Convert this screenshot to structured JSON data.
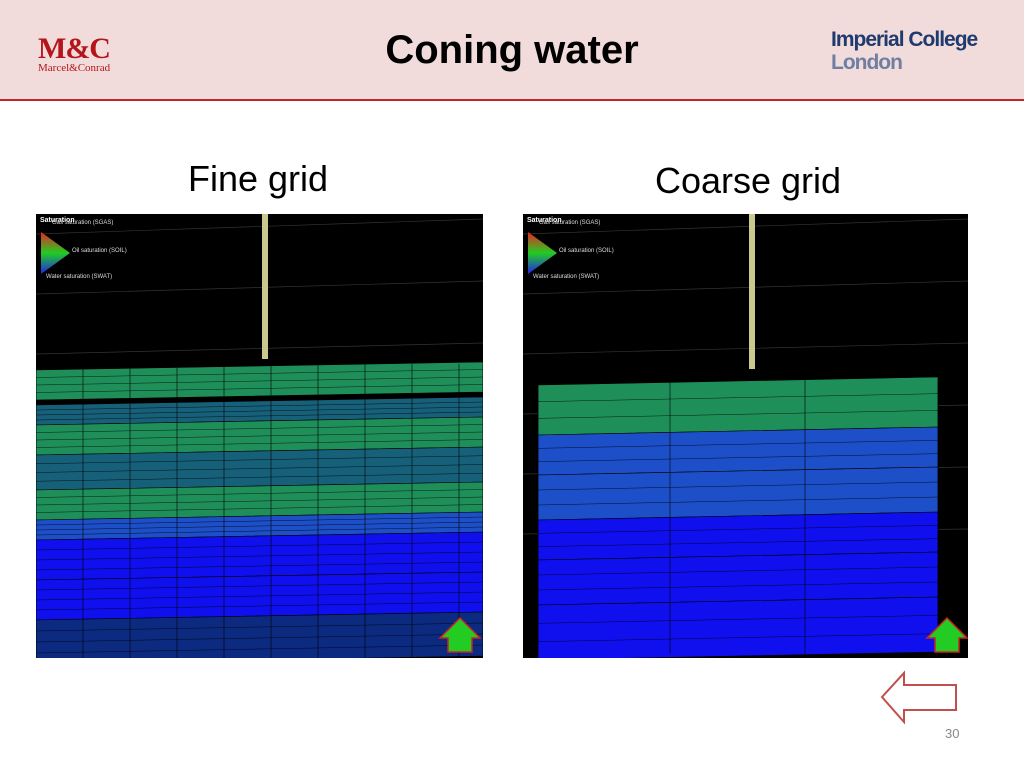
{
  "header": {
    "logo_left": {
      "mark": "M&C",
      "name": "Marcel&Conrad"
    },
    "title": "Coning water",
    "logo_right": {
      "line1": "Imperial College",
      "line2": "London"
    }
  },
  "panels": [
    {
      "caption": "Fine grid",
      "legend": {
        "title": "Saturation",
        "items": [
          "Gas saturation (SGAS)",
          "Oil saturation (SOIL)",
          "Water saturation (SWAT)"
        ]
      }
    },
    {
      "caption": "Coarse grid",
      "legend": {
        "title": "Saturation",
        "items": [
          "Gas saturation (SGAS)",
          "Oil saturation (SOIL)",
          "Water saturation (SWAT)"
        ]
      }
    }
  ],
  "footer": {
    "page_number": "30"
  }
}
